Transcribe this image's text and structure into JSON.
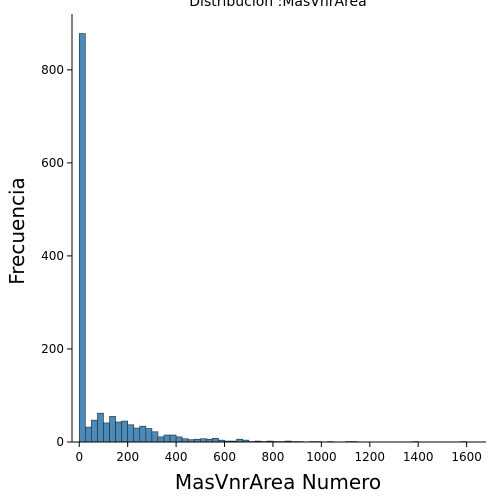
{
  "chart_data": {
    "type": "bar",
    "subtype": "histogram",
    "title": "Distribución :MasVnrArea",
    "xlabel": "MasVnrArea Numero",
    "ylabel": "Frecuencia",
    "xlim": [
      -30,
      1680
    ],
    "ylim": [
      0,
      920
    ],
    "xticks": [
      0,
      200,
      400,
      600,
      800,
      1000,
      1200,
      1400,
      1600
    ],
    "yticks": [
      0,
      200,
      400,
      600,
      800
    ],
    "bar_color": "#4c8ab8",
    "edge_color": "#1f2a33",
    "grid": false,
    "bin_width": 25,
    "bins": [
      {
        "x0": 0,
        "count": 878
      },
      {
        "x0": 25,
        "count": 32
      },
      {
        "x0": 50,
        "count": 47
      },
      {
        "x0": 75,
        "count": 62
      },
      {
        "x0": 100,
        "count": 41
      },
      {
        "x0": 125,
        "count": 55
      },
      {
        "x0": 150,
        "count": 43
      },
      {
        "x0": 175,
        "count": 45
      },
      {
        "x0": 200,
        "count": 37
      },
      {
        "x0": 225,
        "count": 30
      },
      {
        "x0": 250,
        "count": 34
      },
      {
        "x0": 275,
        "count": 29
      },
      {
        "x0": 300,
        "count": 22
      },
      {
        "x0": 325,
        "count": 11
      },
      {
        "x0": 350,
        "count": 15
      },
      {
        "x0": 375,
        "count": 15
      },
      {
        "x0": 400,
        "count": 11
      },
      {
        "x0": 425,
        "count": 7
      },
      {
        "x0": 450,
        "count": 5
      },
      {
        "x0": 475,
        "count": 6
      },
      {
        "x0": 500,
        "count": 7
      },
      {
        "x0": 525,
        "count": 6
      },
      {
        "x0": 550,
        "count": 8
      },
      {
        "x0": 575,
        "count": 4
      },
      {
        "x0": 600,
        "count": 2
      },
      {
        "x0": 625,
        "count": 2
      },
      {
        "x0": 650,
        "count": 6
      },
      {
        "x0": 675,
        "count": 4
      },
      {
        "x0": 700,
        "count": 1
      },
      {
        "x0": 725,
        "count": 2
      },
      {
        "x0": 750,
        "count": 1
      },
      {
        "x0": 775,
        "count": 2
      },
      {
        "x0": 800,
        "count": 1
      },
      {
        "x0": 825,
        "count": 1
      },
      {
        "x0": 850,
        "count": 2
      },
      {
        "x0": 875,
        "count": 1
      },
      {
        "x0": 900,
        "count": 1
      },
      {
        "x0": 950,
        "count": 1
      },
      {
        "x0": 975,
        "count": 1
      },
      {
        "x0": 1025,
        "count": 1
      },
      {
        "x0": 1100,
        "count": 1
      },
      {
        "x0": 1125,
        "count": 1
      },
      {
        "x0": 1375,
        "count": 1
      },
      {
        "x0": 1575,
        "count": 1
      }
    ]
  }
}
